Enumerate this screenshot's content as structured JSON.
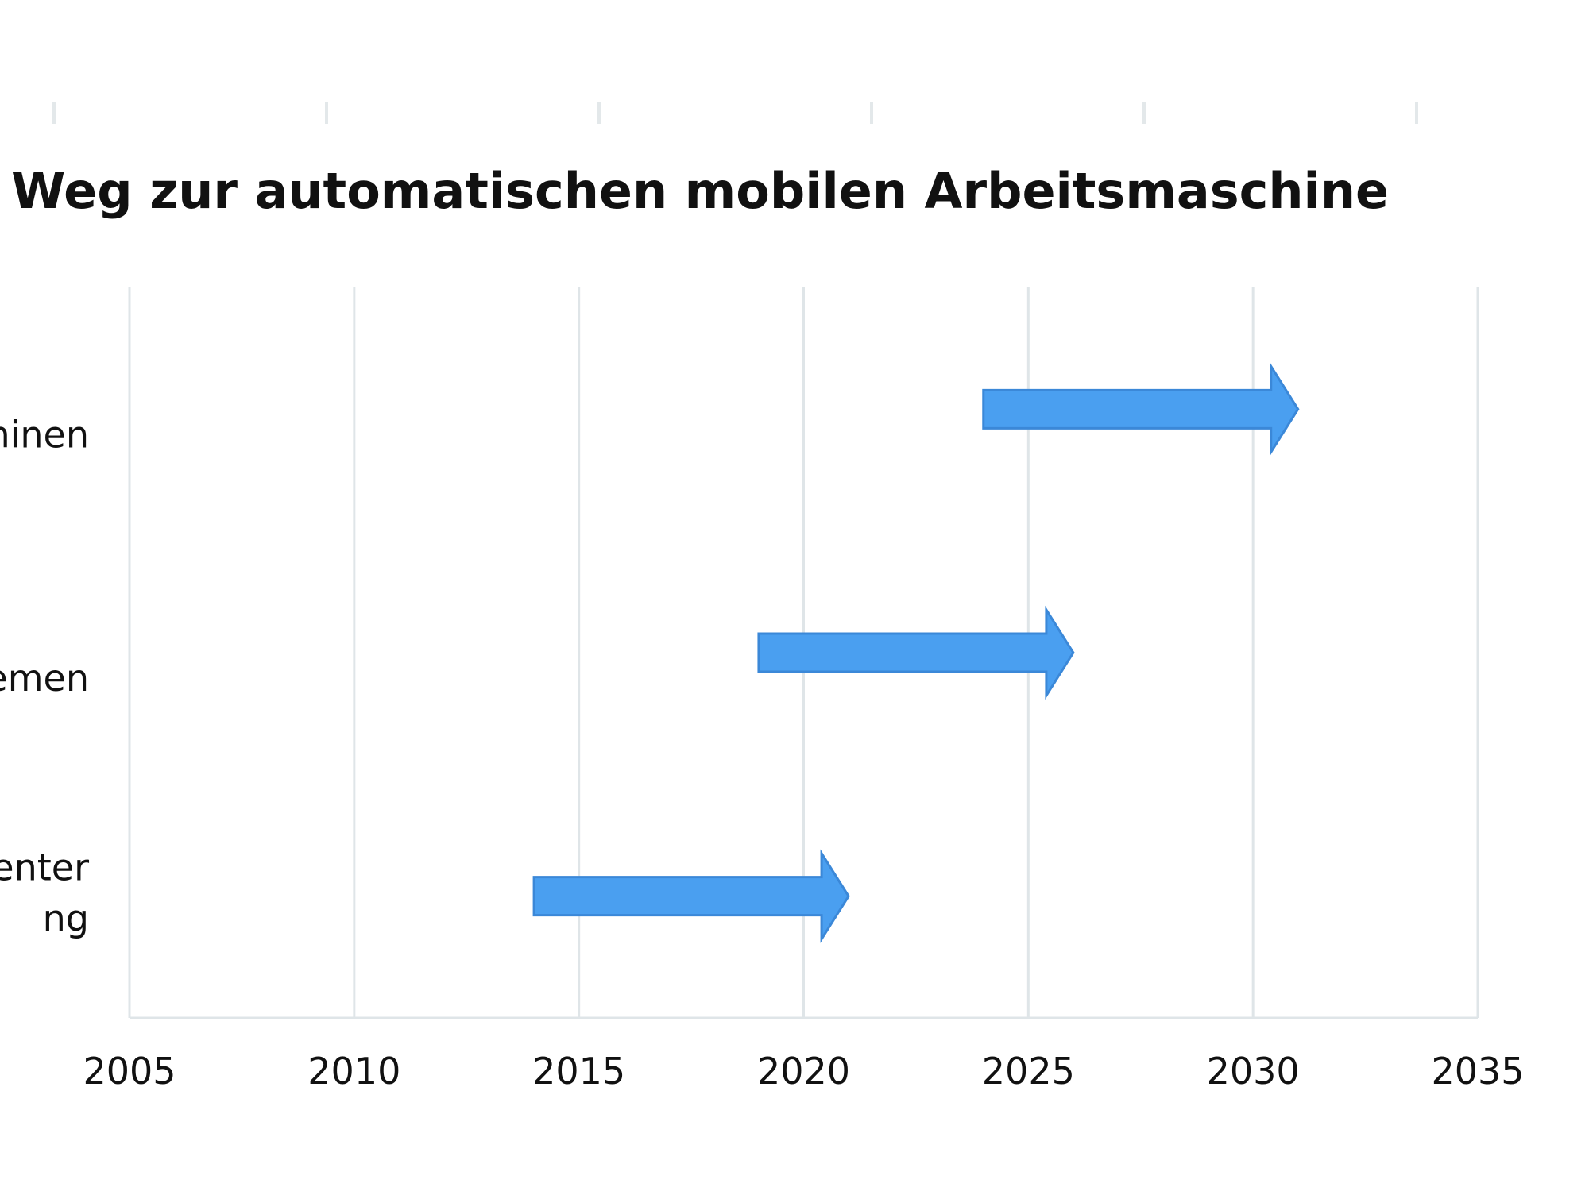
{
  "chart_data": {
    "type": "bar",
    "title": "Weg zur automatischen mobilen Arbeitsmaschine",
    "xlabel": "",
    "ylabel": "",
    "xlim": [
      2005,
      2035
    ],
    "x_ticks": [
      "2005",
      "2010",
      "2015",
      "2020",
      "2025",
      "2030",
      "2035"
    ],
    "grid": true,
    "row_labels_visible": [
      "hinen",
      "emen",
      "enter\nng"
    ],
    "series": [
      {
        "label_visible": "hinen",
        "start": 2024,
        "end": 2031
      },
      {
        "label_visible": "emen",
        "start": 2019,
        "end": 2026
      },
      {
        "label_visible": "enter\nng",
        "start": 2014,
        "end": 2021
      }
    ],
    "colors": {
      "arrow_fill": "#4a9ff0",
      "arrow_stroke": "#3b88d8",
      "grid": "#dfe5e8"
    }
  }
}
